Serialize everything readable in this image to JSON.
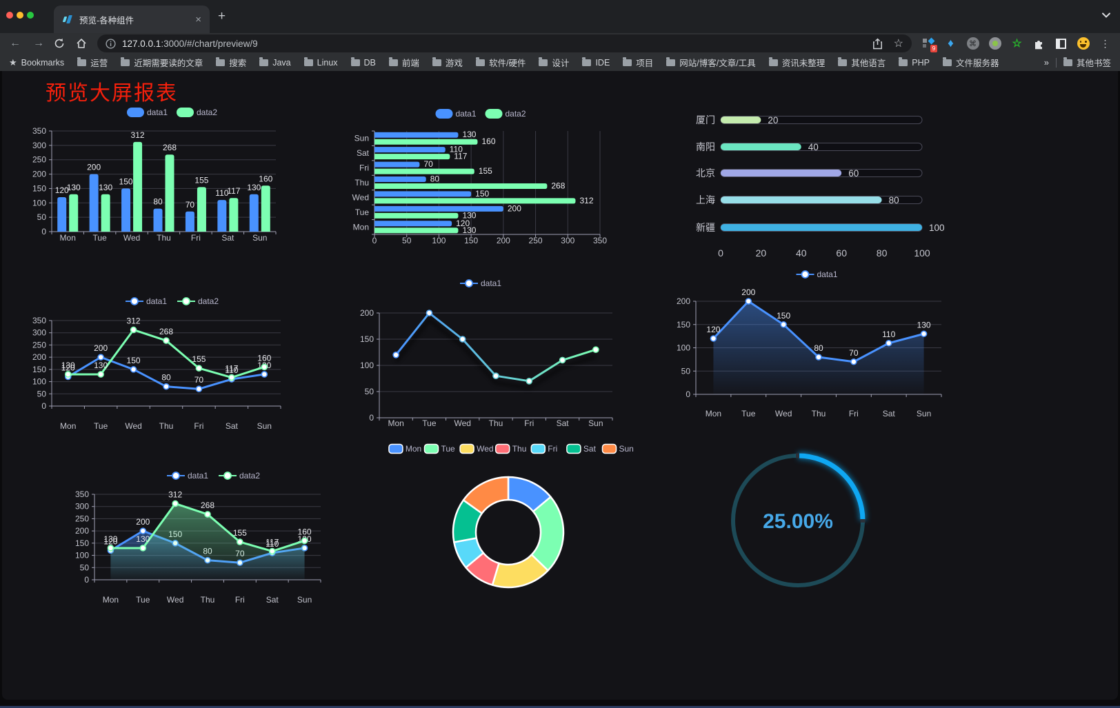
{
  "browser": {
    "tab_title": "预览-各种组件",
    "url": {
      "host": "127.0.0.1",
      "rest": ":3000/#/chart/preview/9"
    },
    "bookmarks": {
      "label": "Bookmarks",
      "folders": [
        "运营",
        "近期需要读的文章",
        "搜索",
        "Java",
        "Linux",
        "DB",
        "前端",
        "游戏",
        "软件/硬件",
        "设计",
        "IDE",
        "项目",
        "网站/博客/文章/工具",
        "资讯未整理",
        "其他语言",
        "PHP",
        "文件服务器"
      ],
      "overflow": "»",
      "other": "其他书签"
    },
    "extensions": {
      "badge": "9"
    },
    "glyphs": {
      "back": "←",
      "forward": "→",
      "close": "×",
      "new_tab": "+",
      "menu": "⋮",
      "command": "⌘",
      "gem": "♦",
      "green_star": "☆",
      "bookmarks_star": "★",
      "omnibox_star": "☆"
    }
  },
  "page": {
    "title": "预览大屏报表",
    "title_color": "#f5200c"
  },
  "chart_data": [
    {
      "id": "b1",
      "type": "bar",
      "categories": [
        "Mon",
        "Tue",
        "Wed",
        "Thu",
        "Fri",
        "Sat",
        "Sun"
      ],
      "series": [
        {
          "name": "data1",
          "color": "#4992ff",
          "values": [
            120,
            200,
            150,
            80,
            70,
            110,
            130
          ]
        },
        {
          "name": "data2",
          "color": "#7cffb2",
          "values": [
            130,
            130,
            312,
            268,
            155,
            117,
            160
          ]
        }
      ],
      "ylim": [
        0,
        350
      ],
      "yticks": [
        0,
        50,
        100,
        150,
        200,
        250,
        300,
        350
      ],
      "legend_position": "top",
      "grid": true
    },
    {
      "id": "hb1",
      "type": "hbar",
      "categories": [
        "Mon",
        "Tue",
        "Wed",
        "Thu",
        "Fri",
        "Sat",
        "Sun"
      ],
      "series": [
        {
          "name": "data1",
          "color": "#4992ff",
          "values": [
            120,
            200,
            150,
            80,
            70,
            110,
            130
          ]
        },
        {
          "name": "data2",
          "color": "#7cffb2",
          "values": [
            130,
            130,
            312,
            268,
            155,
            117,
            160
          ]
        }
      ],
      "xlim": [
        0,
        350
      ],
      "xticks": [
        0,
        50,
        100,
        150,
        200,
        250,
        300,
        350
      ],
      "legend_position": "top",
      "grid": true
    },
    {
      "id": "pg1",
      "type": "progress",
      "items": [
        {
          "label": "厦门",
          "value": 20,
          "color": "#c4ebad"
        },
        {
          "label": "南阳",
          "value": 40,
          "color": "#6be6c1"
        },
        {
          "label": "北京",
          "value": 60,
          "color": "#a0a7e6"
        },
        {
          "label": "上海",
          "value": 80,
          "color": "#96dee8"
        },
        {
          "label": "新疆",
          "value": 100,
          "color": "#3fb1e3"
        }
      ],
      "xlim": [
        0,
        100
      ],
      "xticks": [
        0,
        20,
        40,
        60,
        80,
        100
      ]
    },
    {
      "id": "ln1",
      "type": "line",
      "categories": [
        "Mon",
        "Tue",
        "Wed",
        "Thu",
        "Fri",
        "Sat",
        "Sun"
      ],
      "series": [
        {
          "name": "data1",
          "color": "#4992ff",
          "values": [
            120,
            200,
            150,
            80,
            70,
            110,
            130
          ]
        },
        {
          "name": "data2",
          "color": "#7cffb2",
          "values": [
            130,
            130,
            312,
            268,
            155,
            117,
            160
          ]
        }
      ],
      "ylim": [
        0,
        350
      ],
      "yticks": [
        0,
        50,
        100,
        150,
        200,
        250,
        300,
        350
      ],
      "legend_position": "top",
      "grid": true
    },
    {
      "id": "ln2",
      "type": "line",
      "categories": [
        "Mon",
        "Tue",
        "Wed",
        "Thu",
        "Fri",
        "Sat",
        "Sun"
      ],
      "series": [
        {
          "name": "data1",
          "gradient": [
            "#4992ff",
            "#7cffb2"
          ],
          "values": [
            120,
            200,
            150,
            80,
            70,
            110,
            130
          ]
        }
      ],
      "ylim": [
        0,
        200
      ],
      "yticks": [
        0,
        50,
        100,
        150,
        200
      ],
      "legend_position": "top",
      "grid": true
    },
    {
      "id": "ar1",
      "type": "line",
      "categories": [
        "Mon",
        "Tue",
        "Wed",
        "Thu",
        "Fri",
        "Sat",
        "Sun"
      ],
      "series": [
        {
          "name": "data1",
          "color": "#4992ff",
          "area": true,
          "values": [
            120,
            200,
            150,
            80,
            70,
            110,
            130
          ]
        }
      ],
      "ylim": [
        0,
        200
      ],
      "yticks": [
        0,
        50,
        100,
        150,
        200
      ],
      "legend_position": "top",
      "grid": true
    },
    {
      "id": "ar2",
      "type": "line",
      "categories": [
        "Mon",
        "Tue",
        "Wed",
        "Thu",
        "Fri",
        "Sat",
        "Sun"
      ],
      "series": [
        {
          "name": "data1",
          "color": "#4992ff",
          "area": true,
          "values": [
            120,
            200,
            150,
            80,
            70,
            110,
            130
          ]
        },
        {
          "name": "data2",
          "color": "#7cffb2",
          "area": true,
          "values": [
            130,
            130,
            312,
            268,
            155,
            117,
            160
          ]
        }
      ],
      "ylim": [
        0,
        350
      ],
      "yticks": [
        0,
        50,
        100,
        150,
        200,
        250,
        300,
        350
      ],
      "legend_position": "top",
      "grid": true
    },
    {
      "id": "dn1",
      "type": "donut",
      "items": [
        {
          "label": "Mon",
          "value": 120,
          "color": "#4992ff"
        },
        {
          "label": "Tue",
          "value": 200,
          "color": "#7cffb2"
        },
        {
          "label": "Wed",
          "value": 150,
          "color": "#fddd60"
        },
        {
          "label": "Thu",
          "value": 80,
          "color": "#ff6e76"
        },
        {
          "label": "Fri",
          "value": 70,
          "color": "#58d9f9"
        },
        {
          "label": "Sat",
          "value": 110,
          "color": "#05c091"
        },
        {
          "label": "Sun",
          "value": 130,
          "color": "#ff8a45"
        }
      ],
      "legend_position": "top"
    },
    {
      "id": "gg1",
      "type": "gauge",
      "value": 25,
      "display": "25.00%",
      "arc_color": "#0fa7f2",
      "track_color": "#1d4a57",
      "text_color": "#46a8e8"
    }
  ]
}
